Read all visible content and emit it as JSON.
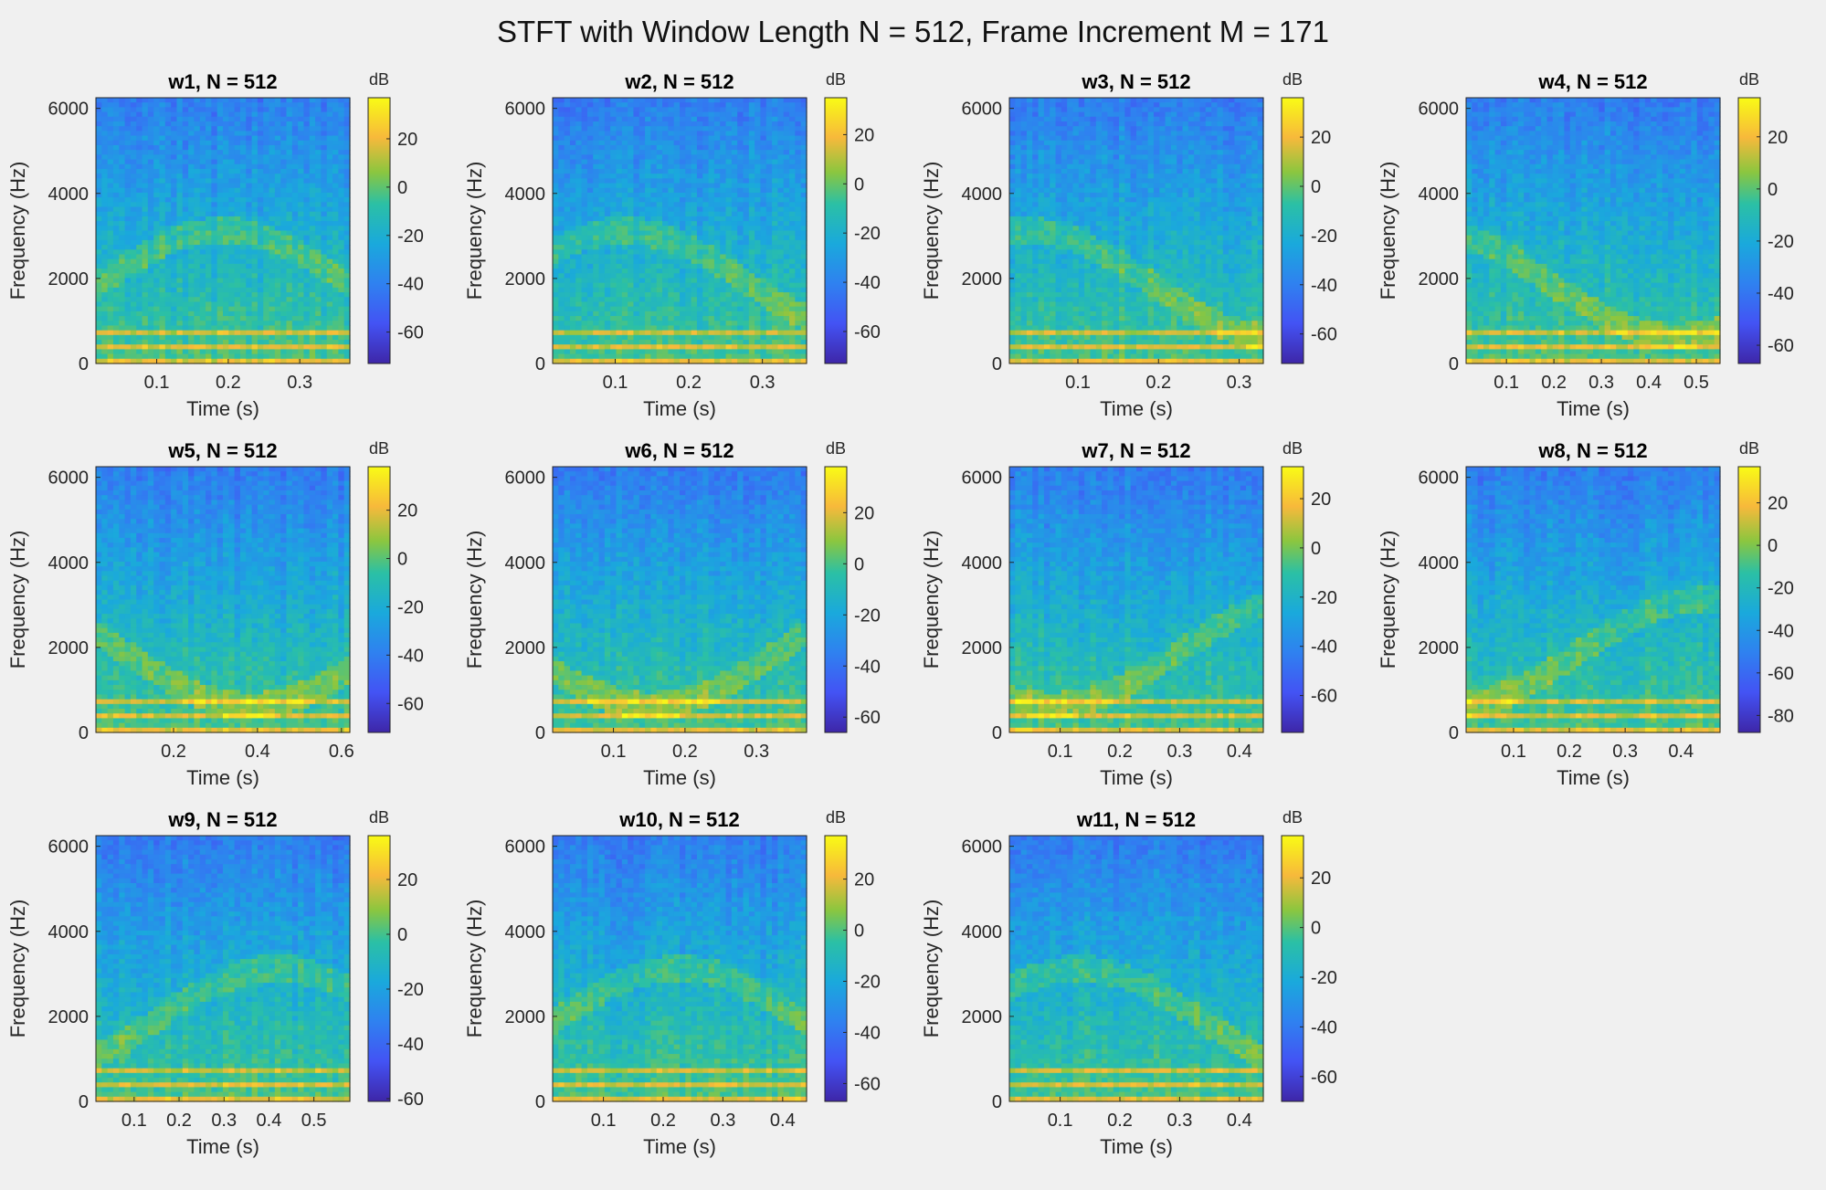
{
  "title": "STFT with Window Length N = 512, Frame Increment M = 171",
  "colors": {
    "background": "#f0f0f0",
    "colormap": "parula",
    "axis": "#262626"
  },
  "chart_data": [
    {
      "type": "heatmap",
      "title": "w1, N = 512",
      "xlabel": "Time (s)",
      "ylabel": "Frequency (Hz)",
      "xlim": [
        0.015,
        0.37
      ],
      "xticks": [
        0.1,
        0.2,
        0.3
      ],
      "ylim": [
        0,
        6250
      ],
      "yticks": [
        0,
        2000,
        4000,
        6000
      ],
      "colorbar": {
        "label": "dB",
        "min": -73,
        "max": 37,
        "ticks": [
          20,
          0,
          -20,
          -40,
          -60
        ]
      }
    },
    {
      "type": "heatmap",
      "title": "w2, N = 512",
      "xlabel": "Time (s)",
      "ylabel": "Frequency (Hz)",
      "xlim": [
        0.015,
        0.36
      ],
      "xticks": [
        0.1,
        0.2,
        0.3
      ],
      "ylim": [
        0,
        6250
      ],
      "yticks": [
        0,
        2000,
        4000,
        6000
      ],
      "colorbar": {
        "label": "dB",
        "min": -73,
        "max": 35,
        "ticks": [
          20,
          0,
          -20,
          -40,
          -60
        ]
      }
    },
    {
      "type": "heatmap",
      "title": "w3, N = 512",
      "xlabel": "Time (s)",
      "ylabel": "Frequency (Hz)",
      "xlim": [
        0.015,
        0.33
      ],
      "xticks": [
        0.1,
        0.2,
        0.3
      ],
      "ylim": [
        0,
        6250
      ],
      "yticks": [
        0,
        2000,
        4000,
        6000
      ],
      "colorbar": {
        "label": "dB",
        "min": -72,
        "max": 36,
        "ticks": [
          20,
          0,
          -20,
          -40,
          -60
        ]
      }
    },
    {
      "type": "heatmap",
      "title": "w4, N = 512",
      "xlabel": "Time (s)",
      "ylabel": "Frequency (Hz)",
      "xlim": [
        0.015,
        0.55
      ],
      "xticks": [
        0.1,
        0.2,
        0.3,
        0.4,
        0.5
      ],
      "ylim": [
        0,
        6250
      ],
      "yticks": [
        0,
        2000,
        4000,
        6000
      ],
      "colorbar": {
        "label": "dB",
        "min": -67,
        "max": 35,
        "ticks": [
          20,
          0,
          -20,
          -40,
          -60
        ]
      }
    },
    {
      "type": "heatmap",
      "title": "w5, N = 512",
      "xlabel": "Time (s)",
      "ylabel": "Frequency (Hz)",
      "xlim": [
        0.015,
        0.62
      ],
      "xticks": [
        0.2,
        0.4,
        0.6
      ],
      "ylim": [
        0,
        6250
      ],
      "yticks": [
        0,
        2000,
        4000,
        6000
      ],
      "colorbar": {
        "label": "dB",
        "min": -72,
        "max": 38,
        "ticks": [
          20,
          0,
          -20,
          -40,
          -60
        ]
      }
    },
    {
      "type": "heatmap",
      "title": "w6, N = 512",
      "xlabel": "Time (s)",
      "ylabel": "Frequency (Hz)",
      "xlim": [
        0.015,
        0.37
      ],
      "xticks": [
        0.1,
        0.2,
        0.3
      ],
      "ylim": [
        0,
        6250
      ],
      "yticks": [
        0,
        2000,
        4000,
        6000
      ],
      "colorbar": {
        "label": "dB",
        "min": -66,
        "max": 38,
        "ticks": [
          20,
          0,
          -20,
          -40,
          -60
        ]
      }
    },
    {
      "type": "heatmap",
      "title": "w7, N = 512",
      "xlabel": "Time (s)",
      "ylabel": "Frequency (Hz)",
      "xlim": [
        0.015,
        0.44
      ],
      "xticks": [
        0.1,
        0.2,
        0.3,
        0.4
      ],
      "ylim": [
        0,
        6250
      ],
      "yticks": [
        0,
        2000,
        4000,
        6000
      ],
      "colorbar": {
        "label": "dB",
        "min": -75,
        "max": 33,
        "ticks": [
          20,
          0,
          -20,
          -40,
          -60
        ]
      }
    },
    {
      "type": "heatmap",
      "title": "w8, N = 512",
      "xlabel": "Time (s)",
      "ylabel": "Frequency (Hz)",
      "xlim": [
        0.015,
        0.47
      ],
      "xticks": [
        0.1,
        0.2,
        0.3,
        0.4
      ],
      "ylim": [
        0,
        6250
      ],
      "yticks": [
        0,
        2000,
        4000,
        6000
      ],
      "colorbar": {
        "label": "dB",
        "min": -88,
        "max": 37,
        "ticks": [
          20,
          0,
          -20,
          -40,
          -60,
          -80
        ]
      }
    },
    {
      "type": "heatmap",
      "title": "w9, N = 512",
      "xlabel": "Time (s)",
      "ylabel": "Frequency (Hz)",
      "xlim": [
        0.015,
        0.58
      ],
      "xticks": [
        0.1,
        0.2,
        0.3,
        0.4,
        0.5
      ],
      "ylim": [
        0,
        6250
      ],
      "yticks": [
        0,
        2000,
        4000,
        6000
      ],
      "colorbar": {
        "label": "dB",
        "min": -61,
        "max": 36,
        "ticks": [
          20,
          0,
          -20,
          -40,
          -60
        ]
      }
    },
    {
      "type": "heatmap",
      "title": "w10, N = 512",
      "xlabel": "Time (s)",
      "ylabel": "Frequency (Hz)",
      "xlim": [
        0.015,
        0.44
      ],
      "xticks": [
        0.1,
        0.2,
        0.3,
        0.4
      ],
      "ylim": [
        0,
        6250
      ],
      "yticks": [
        0,
        2000,
        4000,
        6000
      ],
      "colorbar": {
        "label": "dB",
        "min": -67,
        "max": 37,
        "ticks": [
          20,
          0,
          -20,
          -40,
          -60
        ]
      }
    },
    {
      "type": "heatmap",
      "title": "w11, N = 512",
      "xlabel": "Time (s)",
      "ylabel": "Frequency (Hz)",
      "xlim": [
        0.015,
        0.44
      ],
      "xticks": [
        0.1,
        0.2,
        0.3,
        0.4
      ],
      "ylim": [
        0,
        6250
      ],
      "yticks": [
        0,
        2000,
        4000,
        6000
      ],
      "colorbar": {
        "label": "dB",
        "min": -70,
        "max": 37,
        "ticks": [
          20,
          0,
          -20,
          -40,
          -60
        ]
      }
    }
  ]
}
